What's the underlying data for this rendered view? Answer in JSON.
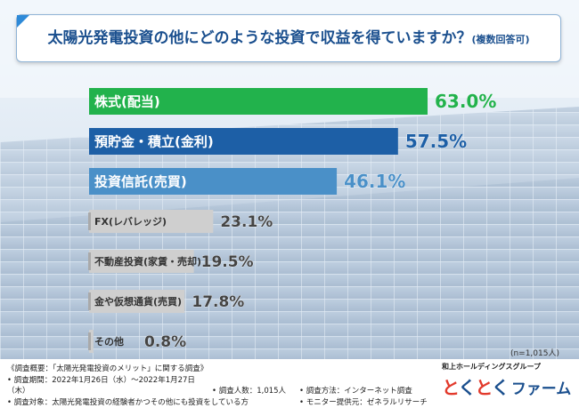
{
  "title": {
    "main": "太陽光発電投資の他にどのような投資で収益を得ていますか？",
    "sub": "(複数回答可)"
  },
  "chart_data": {
    "type": "bar",
    "orientation": "horizontal",
    "title": "太陽光発電投資の他にどのような投資で収益を得ていますか？(複数回答可)",
    "categories": [
      "株式(配当)",
      "預貯金・積立(金利)",
      "投資信託(売買)",
      "FX(レバレッジ)",
      "不動産投資(家賃・売却)",
      "金や仮想通貨(売買)",
      "その他"
    ],
    "values": [
      63.0,
      57.5,
      46.1,
      23.1,
      19.5,
      17.8,
      0.8
    ],
    "value_labels": [
      "63.0%",
      "57.5%",
      "46.1%",
      "23.1%",
      "19.5%",
      "17.8%",
      "0.8%"
    ],
    "bar_colors": [
      "#22b24c",
      "#1d5fa6",
      "#4a90c8",
      "#cfcfcf",
      "#cfcfcf",
      "#cfcfcf",
      "#cfcfcf"
    ],
    "label_colors": [
      "#22b24c",
      "#1d5fa6",
      "#4a90c8",
      "#444444",
      "#444444",
      "#444444",
      "#444444"
    ],
    "xlim": [
      0,
      63.0
    ],
    "grid": false,
    "legend": "none"
  },
  "note": "(n=1,015人)",
  "survey": {
    "overview": "《調査概要：「太陽光発電投資のメリット」に関する調査》",
    "period": "• 調査期間：2022年1月26日（水）～2022年1月27日（木）",
    "respondents": "• 調査人数：1,015人",
    "method": "• 調査方法：インターネット調査",
    "target": "• 調査対象：太陽光発電投資の経験者かつその他にも投資をしている方",
    "provider": "• モニター提供元：ゼネラルリサーチ"
  },
  "logo": {
    "company": "和上ホールディングスグループ",
    "kana1": "と",
    "kana2": "く",
    "kana3": "と",
    "kana4": "く",
    "suffix": "ファーム"
  },
  "colors": {
    "accent": "#2e8ad8",
    "title": "#1a4f8e",
    "footer_bg": "#ffffff"
  }
}
